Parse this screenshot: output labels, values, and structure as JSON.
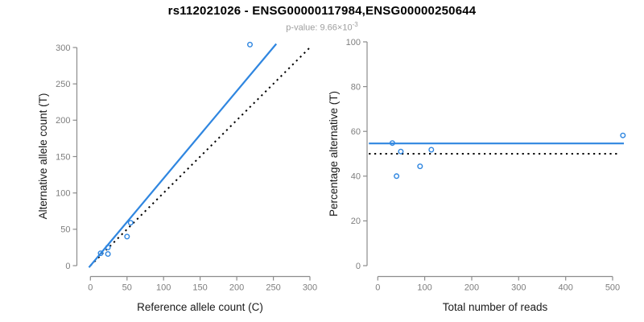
{
  "header": {
    "title": "rs112021026 - ENSG00000117984,ENSG00000250644",
    "subtitle_prefix": "p-value: 9.66×10",
    "subtitle_exponent": "-3"
  },
  "colors": {
    "accent_blue": "#2F86E0",
    "identity_black": "#000000",
    "axis_gray": "#8C8C8C",
    "tick_label_gray": "#7E7E7E",
    "axis_title_black": "#1A1A1A",
    "subtitle_gray": "#9E9E9E"
  },
  "chart_data": [
    {
      "type": "scatter",
      "panel": "left",
      "xlabel": "Reference allele count (C)",
      "ylabel": "Alternative allele count (T)",
      "xlim": [
        0,
        300
      ],
      "ylim": [
        0,
        300
      ],
      "xticks": [
        0,
        50,
        100,
        150,
        200,
        250,
        300
      ],
      "yticks": [
        0,
        50,
        100,
        150,
        200,
        250,
        300
      ],
      "grid": false,
      "point_color": "#2F86E0",
      "points": [
        [
          14,
          17
        ],
        [
          24,
          16
        ],
        [
          24,
          25
        ],
        [
          50,
          40
        ],
        [
          55,
          59
        ],
        [
          218,
          304
        ]
      ],
      "lines": [
        {
          "name": "identity-line",
          "style": "dotted",
          "color": "#000000",
          "slope_desc": "y = x",
          "from": [
            0,
            0
          ],
          "to": [
            302,
            302
          ]
        },
        {
          "name": "regression-line",
          "style": "solid",
          "color": "#2F86E0",
          "slope_desc": "y = 1.2x",
          "from": [
            -2,
            -2.4
          ],
          "to": [
            254,
            305
          ]
        }
      ]
    },
    {
      "type": "scatter",
      "panel": "right",
      "xlabel": "Total number of reads",
      "ylabel": "Percentage alternative (T)",
      "xlim": [
        0,
        500
      ],
      "ylim": [
        0,
        100
      ],
      "xticks": [
        0,
        100,
        200,
        300,
        400,
        500
      ],
      "yticks": [
        0,
        20,
        40,
        60,
        80,
        100
      ],
      "grid": false,
      "point_color": "#2F86E0",
      "points": [
        [
          31,
          54.8
        ],
        [
          40,
          40
        ],
        [
          49,
          51
        ],
        [
          90,
          44.4
        ],
        [
          114,
          51.8
        ],
        [
          522,
          58.2
        ]
      ],
      "lines": [
        {
          "name": "fifty-percent-line",
          "style": "dotted",
          "color": "#000000",
          "value_desc": "y = 50",
          "from": [
            -19,
            50
          ],
          "to": [
            514,
            50
          ]
        },
        {
          "name": "mean-percentage-line",
          "style": "solid",
          "color": "#2F86E0",
          "value_desc": "y = 54.6",
          "from": [
            -19,
            54.6
          ],
          "to": [
            524,
            54.6
          ]
        }
      ]
    }
  ]
}
